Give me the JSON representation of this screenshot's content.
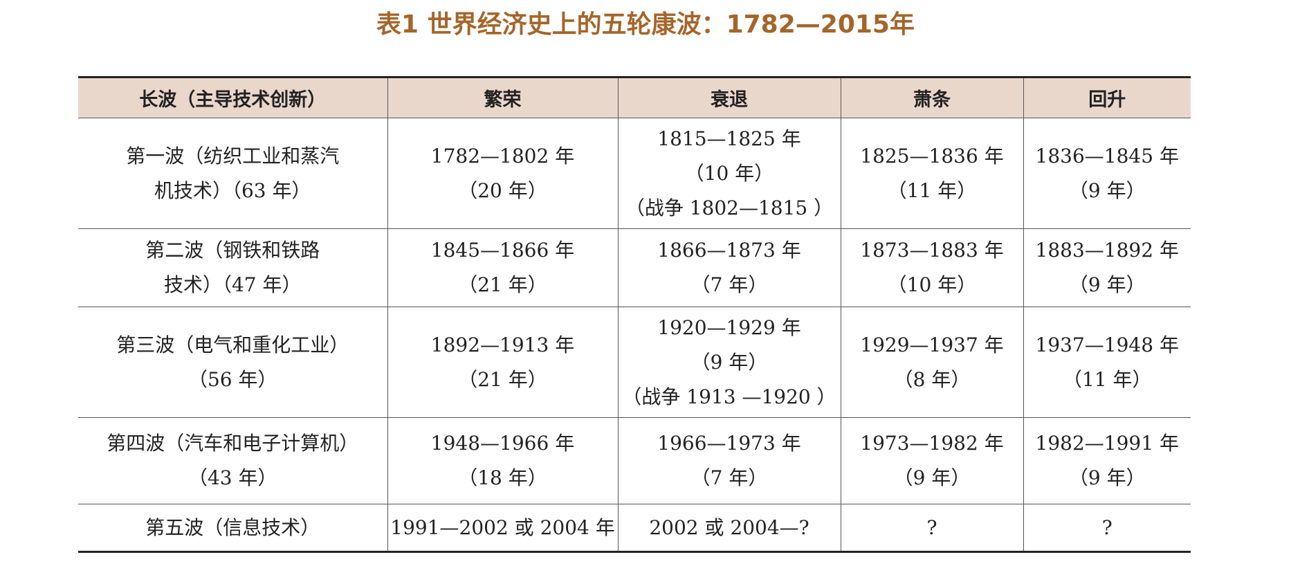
{
  "title": "表1 世界经济史上的五轮康波：1782—2015年",
  "headers": [
    "长波（主导技术创新）",
    "繁荣",
    "衰退",
    "萧条",
    "回升"
  ],
  "rows": [
    {
      "wave": [
        "第一波（纺织工业和蒸汽",
        "机技术）（63 年）"
      ],
      "prosperity": [
        "1782—1802 年",
        "（20 年）"
      ],
      "recession": [
        "1815—1825 年",
        "（10 年）",
        "（战争 1802—1815 ）"
      ],
      "depression": [
        "1825—1836 年",
        "（11 年）"
      ],
      "recovery": [
        "1836—1845 年",
        "（9 年）"
      ]
    },
    {
      "wave": [
        "第二波（钢铁和铁路",
        "技术）（47 年）"
      ],
      "prosperity": [
        "1845—1866 年",
        "（21 年）"
      ],
      "recession": [
        "1866—1873 年",
        "（7 年）"
      ],
      "depression": [
        "1873—1883 年",
        "（10 年）"
      ],
      "recovery": [
        "1883—1892 年",
        "（9 年）"
      ]
    },
    {
      "wave": [
        "第三波（电气和重化工业）",
        "（56 年）"
      ],
      "prosperity": [
        "1892—1913 年",
        "（21 年）"
      ],
      "recession": [
        "1920—1929 年",
        "（9 年）",
        "（战争 1913 —1920 ）"
      ],
      "depression": [
        "1929—1937 年",
        "（8 年）"
      ],
      "recovery": [
        "1937—1948 年",
        "（11 年）"
      ]
    },
    {
      "wave": [
        "第四波（汽车和电子计算机）",
        "（43 年）"
      ],
      "prosperity": [
        "1948—1966 年",
        "（18 年）"
      ],
      "recession": [
        "1966—1973 年",
        "（7 年）"
      ],
      "depression": [
        "1973—1982 年",
        "（9 年）"
      ],
      "recovery": [
        "1982—1991 年",
        "（9 年）"
      ]
    },
    {
      "wave": [
        "第五波（信息技术）"
      ],
      "prosperity": [
        "1991—2002 或 2004 年"
      ],
      "recession": [
        "2002 或 2004—?"
      ],
      "depression": [
        "?"
      ],
      "recovery": [
        "?"
      ]
    }
  ]
}
